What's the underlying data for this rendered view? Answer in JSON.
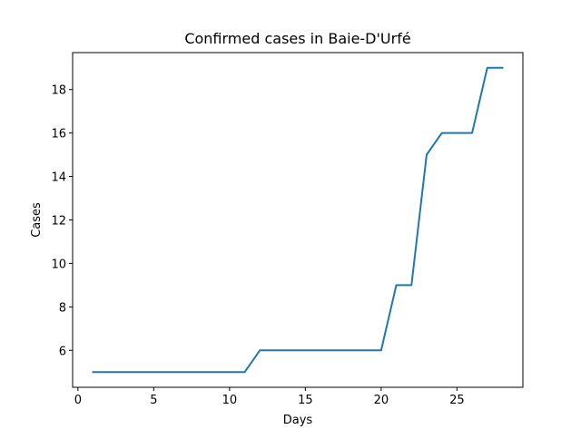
{
  "chart_data": {
    "type": "line",
    "title": "Confirmed cases in Baie-D'Urfé",
    "xlabel": "Days",
    "ylabel": "Cases",
    "xlim": [
      -0.35,
      29.35
    ],
    "ylim": [
      4.3,
      19.7
    ],
    "xticks": [
      0,
      5,
      10,
      15,
      20,
      25
    ],
    "yticks": [
      6,
      8,
      10,
      12,
      14,
      16,
      18
    ],
    "grid": false,
    "series": [
      {
        "color": "#1f77b4",
        "x": [
          1,
          2,
          3,
          4,
          5,
          6,
          7,
          8,
          9,
          10,
          11,
          12,
          13,
          14,
          15,
          16,
          17,
          18,
          19,
          20,
          21,
          22,
          23,
          24,
          25,
          26,
          27,
          28
        ],
        "y": [
          5,
          5,
          5,
          5,
          5,
          5,
          5,
          5,
          5,
          5,
          5,
          6,
          6,
          6,
          6,
          6,
          6,
          6,
          6,
          6,
          9,
          9,
          15,
          16,
          16,
          16,
          19,
          19
        ]
      }
    ]
  }
}
